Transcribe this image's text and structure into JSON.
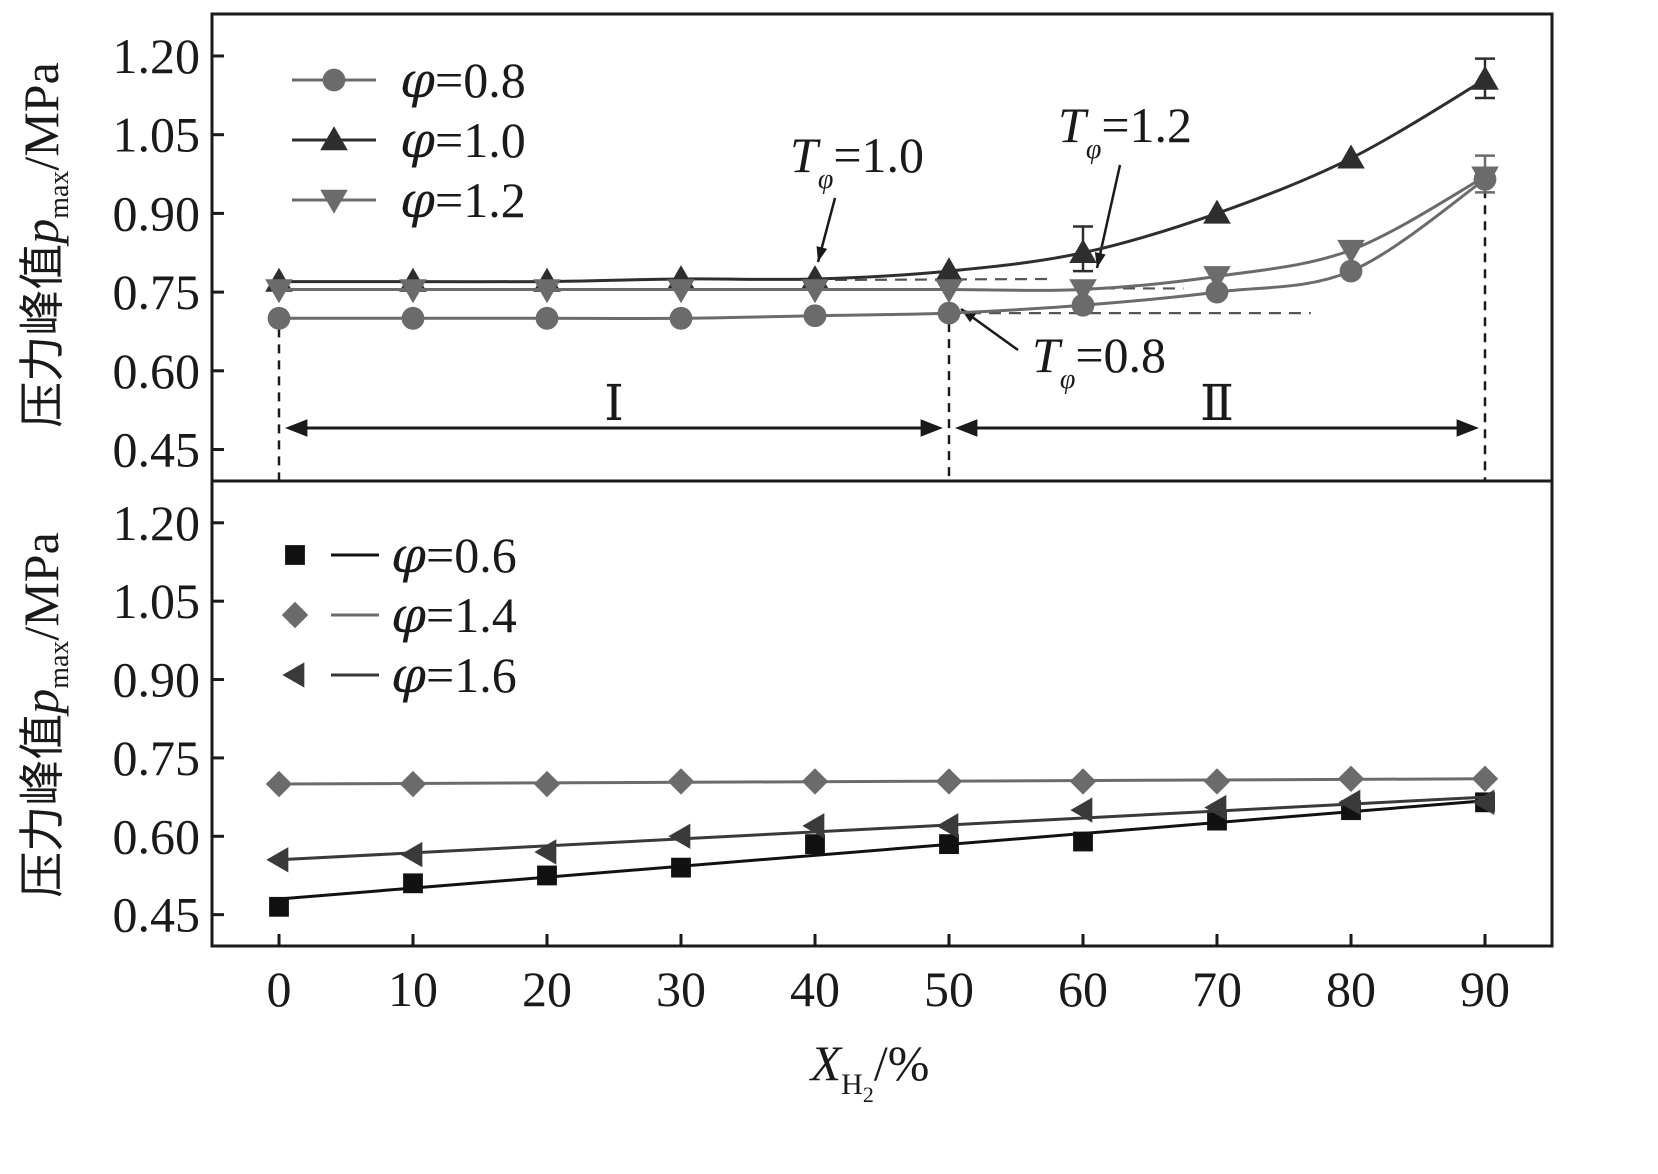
{
  "chart_data": [
    {
      "type": "line",
      "panel": "top",
      "ylabel": "压力峰值p_max/MPa",
      "ylabel_main": "压力峰值",
      "ylabel_var": "p",
      "ylabel_sub": "max",
      "ylabel_unit": "/MPa",
      "ylim": [
        0.39,
        1.28
      ],
      "yticks": [
        "0.45",
        "0.60",
        "0.75",
        "0.90",
        "1.05",
        "1.20"
      ],
      "x": [
        0,
        10,
        20,
        30,
        40,
        50,
        60,
        70,
        80,
        90
      ],
      "series": [
        {
          "name": "φ=0.8",
          "phi": "0.8",
          "marker": "circle",
          "color": "#6b6b6b",
          "values": [
            0.7,
            0.7,
            0.7,
            0.7,
            0.705,
            0.71,
            0.725,
            0.75,
            0.79,
            0.965
          ]
        },
        {
          "name": "φ=1.0",
          "phi": "1.0",
          "marker": "triangle-up",
          "color": "#2e2e2e",
          "values": [
            0.77,
            0.77,
            0.77,
            0.775,
            0.775,
            0.79,
            0.825,
            0.9,
            1.005,
            1.155
          ]
        },
        {
          "name": "φ=1.2",
          "phi": "1.2",
          "marker": "triangle-down",
          "color": "#6b6b6b",
          "values": [
            0.755,
            0.755,
            0.755,
            0.755,
            0.755,
            0.755,
            0.755,
            0.78,
            0.83,
            0.97
          ]
        }
      ],
      "error_bars": [
        {
          "series": "φ=1.0",
          "x": 60,
          "low": 0.79,
          "high": 0.875
        },
        {
          "series": "φ=1.0",
          "x": 90,
          "low": 1.12,
          "high": 1.195
        },
        {
          "series": "φ=1.2",
          "x": 90,
          "low": 0.94,
          "high": 1.01
        }
      ],
      "annotations": [
        {
          "label": "T",
          "sub": "φ",
          "value": "=1.0"
        },
        {
          "label": "T",
          "sub": "φ",
          "value": "=1.2"
        },
        {
          "label": "T",
          "sub": "φ",
          "value": "=0.8"
        }
      ],
      "regions": [
        {
          "label": "Ⅰ",
          "x_start": 0,
          "x_end": 50
        },
        {
          "label": "Ⅱ",
          "x_start": 50,
          "x_end": 90
        }
      ],
      "legend": "top-left"
    },
    {
      "type": "line",
      "panel": "bottom",
      "ylabel": "压力峰值p_max/MPa",
      "ylabel_main": "压力峰值",
      "ylabel_var": "p",
      "ylabel_sub": "max",
      "ylabel_unit": "/MPa",
      "ylim": [
        0.39,
        1.28
      ],
      "yticks": [
        "0.45",
        "0.60",
        "0.75",
        "0.90",
        "1.05",
        "1.20"
      ],
      "xlabel": "X_H2/%",
      "xlabel_var": "X",
      "xlabel_sub": "H",
      "xlabel_subsub": "2",
      "xlabel_unit": "/%",
      "xlim": [
        -5,
        95
      ],
      "xticks": [
        "0",
        "10",
        "20",
        "30",
        "40",
        "50",
        "60",
        "70",
        "80",
        "90"
      ],
      "x": [
        0,
        10,
        20,
        30,
        40,
        50,
        60,
        70,
        80,
        90
      ],
      "series": [
        {
          "name": "φ=0.6",
          "phi": "0.6",
          "marker": "square",
          "color": "#111111",
          "values": [
            0.465,
            0.51,
            0.525,
            0.54,
            0.585,
            0.585,
            0.59,
            0.63,
            0.65,
            0.665
          ],
          "fit": [
            0.48,
            0.668
          ]
        },
        {
          "name": "φ=1.4",
          "phi": "1.4",
          "marker": "diamond",
          "color": "#6b6b6b",
          "values": [
            0.7,
            0.7,
            0.7,
            0.705,
            0.705,
            0.705,
            0.705,
            0.705,
            0.71,
            0.71
          ],
          "fit": [
            0.7,
            0.71
          ]
        },
        {
          "name": "φ=1.6",
          "phi": "1.6",
          "marker": "triangle-left",
          "color": "#3a3a3a",
          "values": [
            0.555,
            0.565,
            0.57,
            0.6,
            0.62,
            0.62,
            0.65,
            0.655,
            0.665,
            0.665
          ],
          "fit": [
            0.555,
            0.675
          ]
        }
      ],
      "legend": "top-left"
    }
  ]
}
